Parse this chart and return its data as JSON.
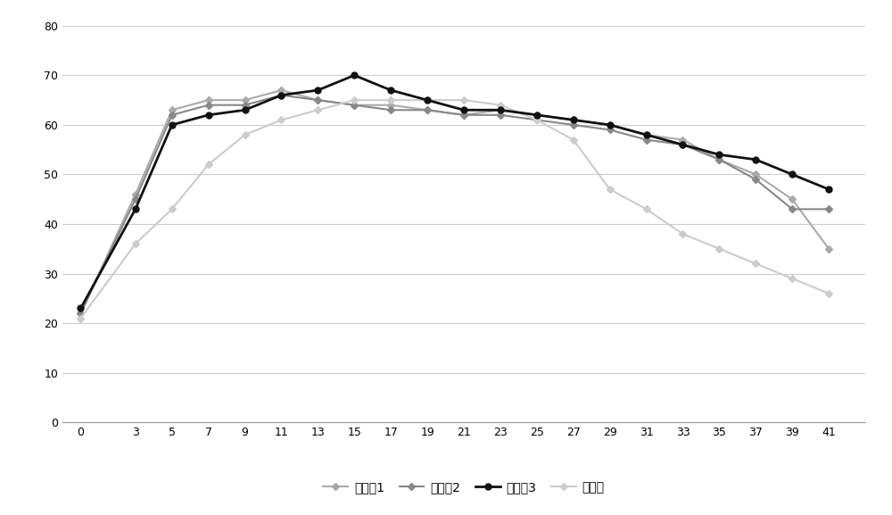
{
  "x": [
    0,
    3,
    5,
    7,
    9,
    11,
    13,
    15,
    17,
    19,
    21,
    23,
    25,
    27,
    29,
    31,
    33,
    35,
    37,
    39,
    41
  ],
  "series_order": [
    "实施例1",
    "实施例2",
    "实施例3",
    "对照组"
  ],
  "series": {
    "实施例1": [
      22,
      46,
      63,
      65,
      65,
      67,
      65,
      64,
      64,
      63,
      62,
      63,
      62,
      61,
      60,
      58,
      57,
      53,
      50,
      45,
      35
    ],
    "实施例2": [
      22,
      45,
      62,
      64,
      64,
      66,
      65,
      64,
      63,
      63,
      62,
      62,
      61,
      60,
      59,
      57,
      56,
      53,
      49,
      43,
      43
    ],
    "实施例3": [
      23,
      43,
      60,
      62,
      63,
      66,
      67,
      70,
      67,
      65,
      63,
      63,
      62,
      61,
      60,
      58,
      56,
      54,
      53,
      50,
      47
    ],
    "对照组": [
      21,
      36,
      43,
      52,
      58,
      61,
      63,
      65,
      65,
      65,
      65,
      64,
      61,
      57,
      47,
      43,
      38,
      35,
      32,
      29,
      26
    ]
  },
  "colors": {
    "实施例1": "#aaaaaa",
    "实施例2": "#888888",
    "实施例3": "#111111",
    "对照组": "#cccccc"
  },
  "line_widths": {
    "实施例1": 1.5,
    "实施例2": 1.5,
    "实施例3": 2.0,
    "对照组": 1.5
  },
  "markers": {
    "实施例1": "D",
    "实施例2": "D",
    "实施例3": "o",
    "对照组": "D"
  },
  "marker_sizes": {
    "实施例1": 4,
    "实施例2": 4,
    "实施例3": 5,
    "对照组": 4
  },
  "ylim": [
    0,
    80
  ],
  "yticks": [
    0,
    10,
    20,
    30,
    40,
    50,
    60,
    70,
    80
  ],
  "background_color": "#ffffff",
  "grid_color": "#cccccc",
  "legend_ncol": 4
}
